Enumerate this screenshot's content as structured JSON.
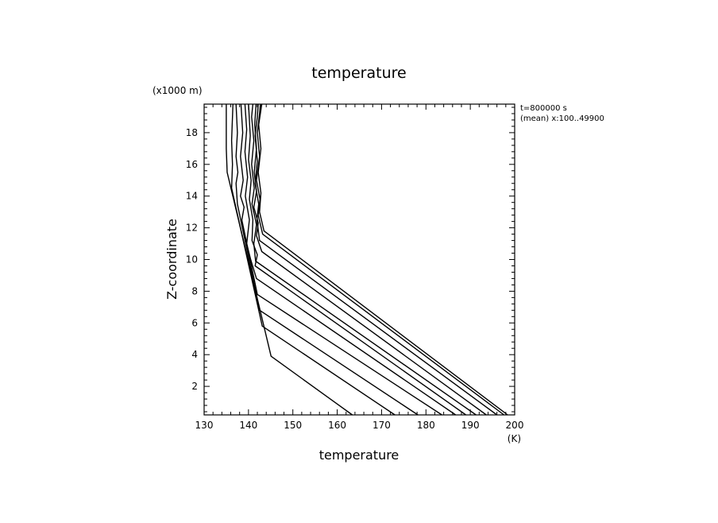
{
  "chart_data": {
    "type": "line",
    "title": "temperature",
    "xlabel": "temperature",
    "xunit": "(K)",
    "ylabel": "Z-coordinate",
    "yunit": "(x1000 m)",
    "xlim": [
      130,
      200
    ],
    "ylim": [
      0.2,
      19.8
    ],
    "xticks": [
      130,
      140,
      150,
      160,
      170,
      180,
      190,
      200
    ],
    "yticks": [
      2,
      4,
      6,
      8,
      10,
      12,
      14,
      16,
      18
    ],
    "annotations": [
      "t=800000 s",
      "(mean) x:100..49900"
    ],
    "grid": false,
    "series": [
      {
        "points": [
          [
            163.4,
            0.2
          ],
          [
            145.1,
            3.9
          ],
          [
            135.2,
            15.5
          ],
          [
            135.0,
            17.0
          ],
          [
            135.0,
            19.8
          ]
        ]
      },
      {
        "points": [
          [
            173.0,
            0.2
          ],
          [
            143.1,
            5.8
          ],
          [
            136.2,
            14.5
          ],
          [
            136.4,
            16.0
          ],
          [
            136.2,
            17.5
          ],
          [
            136.5,
            19.8
          ]
        ]
      },
      {
        "points": [
          [
            178.2,
            0.2
          ],
          [
            142.5,
            6.8
          ],
          [
            137.5,
            13.5
          ],
          [
            137.2,
            14.8
          ],
          [
            137.6,
            15.5
          ],
          [
            137.2,
            16.5
          ],
          [
            137.5,
            18.0
          ],
          [
            137.2,
            19.8
          ]
        ]
      },
      {
        "points": [
          [
            183.6,
            0.2
          ],
          [
            142.0,
            7.8
          ],
          [
            138.5,
            12.5
          ],
          [
            139.0,
            13.3
          ],
          [
            138.2,
            14.0
          ],
          [
            138.8,
            15.0
          ],
          [
            138.2,
            16.5
          ],
          [
            138.7,
            18.0
          ],
          [
            138.3,
            19.8
          ]
        ]
      },
      {
        "points": [
          [
            186.7,
            0.2
          ],
          [
            141.8,
            8.8
          ],
          [
            140.5,
            10.0
          ],
          [
            139.6,
            11.0
          ],
          [
            140.2,
            12.5
          ],
          [
            139.3,
            14.0
          ],
          [
            139.8,
            15.2
          ],
          [
            139.2,
            16.8
          ],
          [
            139.6,
            18.2
          ],
          [
            139.2,
            19.8
          ]
        ]
      },
      {
        "points": [
          [
            189.0,
            0.2
          ],
          [
            141.5,
            9.6
          ],
          [
            142.0,
            10.3
          ],
          [
            140.8,
            11.2
          ],
          [
            141.0,
            12.5
          ],
          [
            140.2,
            13.8
          ],
          [
            140.6,
            15.0
          ],
          [
            140.0,
            16.3
          ],
          [
            140.4,
            17.8
          ],
          [
            140.0,
            19.8
          ]
        ]
      },
      {
        "points": [
          [
            191.3,
            0.2
          ],
          [
            141.6,
            9.9
          ],
          [
            141.2,
            11.0
          ],
          [
            141.8,
            12.2
          ],
          [
            140.8,
            13.5
          ],
          [
            141.3,
            14.5
          ],
          [
            140.7,
            16.0
          ],
          [
            141.2,
            17.5
          ],
          [
            140.7,
            19.0
          ],
          [
            141.0,
            19.8
          ]
        ]
      },
      {
        "points": [
          [
            193.6,
            0.2
          ],
          [
            143.0,
            10.5
          ],
          [
            141.8,
            11.5
          ],
          [
            142.2,
            12.3
          ],
          [
            141.2,
            13.3
          ],
          [
            141.8,
            14.3
          ],
          [
            141.3,
            15.5
          ],
          [
            141.8,
            17.0
          ],
          [
            141.4,
            18.5
          ],
          [
            141.7,
            19.8
          ]
        ]
      },
      {
        "points": [
          [
            196.0,
            0.2
          ],
          [
            142.5,
            11.2
          ],
          [
            141.9,
            12.5
          ],
          [
            142.3,
            13.5
          ],
          [
            141.5,
            14.8
          ],
          [
            142.0,
            16.2
          ],
          [
            141.5,
            17.8
          ],
          [
            142.0,
            19.0
          ],
          [
            142.2,
            19.8
          ]
        ]
      },
      {
        "points": [
          [
            197.6,
            0.2
          ],
          [
            143.2,
            11.6
          ],
          [
            142.2,
            12.8
          ],
          [
            142.6,
            13.8
          ],
          [
            141.8,
            15.0
          ],
          [
            142.5,
            16.5
          ],
          [
            142.0,
            18.0
          ],
          [
            142.5,
            19.2
          ],
          [
            142.7,
            19.8
          ]
        ]
      },
      {
        "points": [
          [
            198.4,
            0.2
          ],
          [
            143.5,
            11.8
          ],
          [
            142.5,
            13.0
          ],
          [
            142.8,
            14.2
          ],
          [
            142.2,
            15.5
          ],
          [
            142.8,
            17.0
          ],
          [
            142.3,
            18.5
          ],
          [
            143.0,
            19.8
          ]
        ]
      }
    ]
  }
}
